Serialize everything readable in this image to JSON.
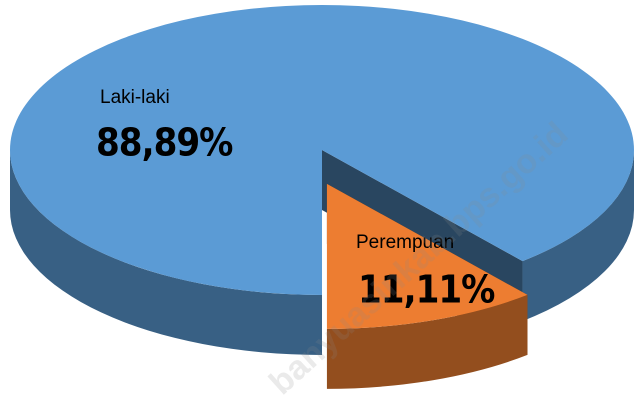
{
  "chart_data": {
    "type": "pie3d",
    "categories": [
      "Laki-laki",
      "Perempuan"
    ],
    "values": [
      88.89,
      11.11
    ],
    "value_labels": [
      "88,89%",
      "11,11%"
    ],
    "colors": [
      "#5b9bd5",
      "#ed7d31"
    ],
    "exploded": [
      false,
      true
    ],
    "watermark": "banyuasinkab.bps.go.id"
  }
}
